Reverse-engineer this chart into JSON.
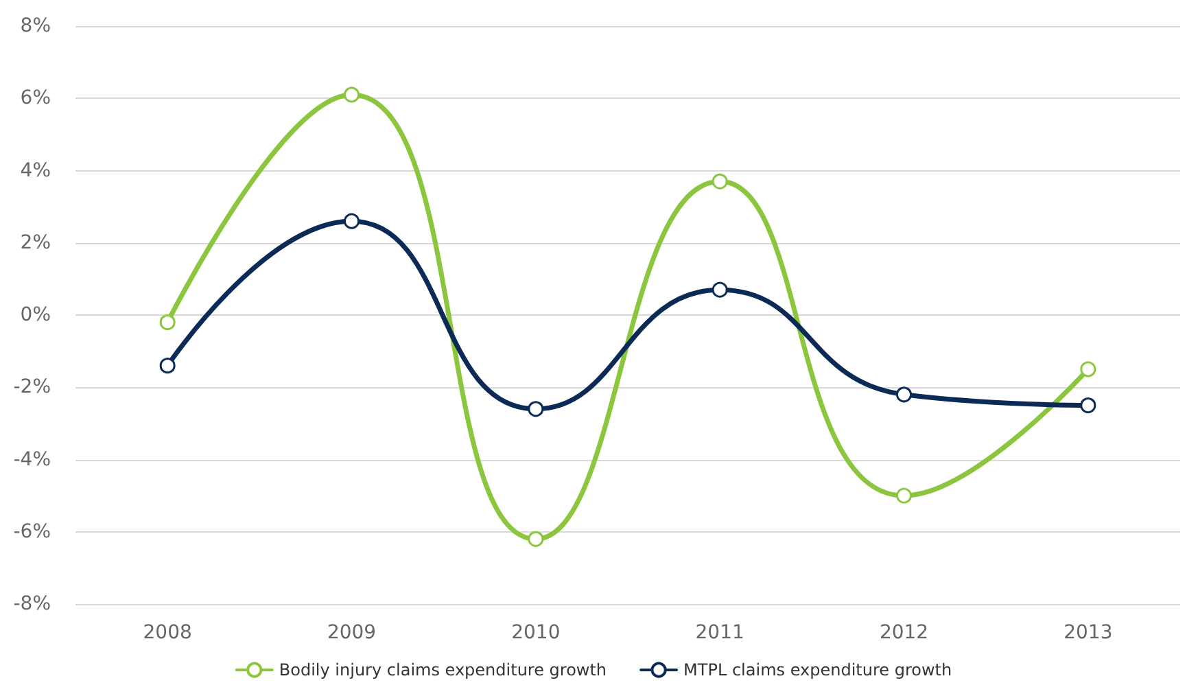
{
  "chart_data": {
    "type": "line",
    "categories": [
      "2008",
      "2009",
      "2010",
      "2011",
      "2012",
      "2013"
    ],
    "series": [
      {
        "name": "Bodily injury claims expenditure growth",
        "color": "#8cc63f",
        "values": [
          -0.2,
          6.1,
          -6.2,
          3.7,
          -5.0,
          -1.5
        ]
      },
      {
        "name": "MTPL claims expenditure growth",
        "color": "#0b2a55",
        "values": [
          -1.4,
          2.6,
          -2.6,
          0.7,
          -2.2,
          -2.5
        ]
      }
    ],
    "ylim": [
      -8,
      8
    ],
    "yticks": [
      {
        "value": -8,
        "label": "-8%"
      },
      {
        "value": -6,
        "label": "-6%"
      },
      {
        "value": -4,
        "label": "-4%"
      },
      {
        "value": -2,
        "label": "-2%"
      },
      {
        "value": 0,
        "label": "0%"
      },
      {
        "value": 2,
        "label": "2%"
      },
      {
        "value": 4,
        "label": "4%"
      },
      {
        "value": 6,
        "label": "6%"
      },
      {
        "value": 8,
        "label": "8%"
      }
    ],
    "grid": "y",
    "legend": "bottom",
    "marker": "circle",
    "line_style": "solid"
  }
}
